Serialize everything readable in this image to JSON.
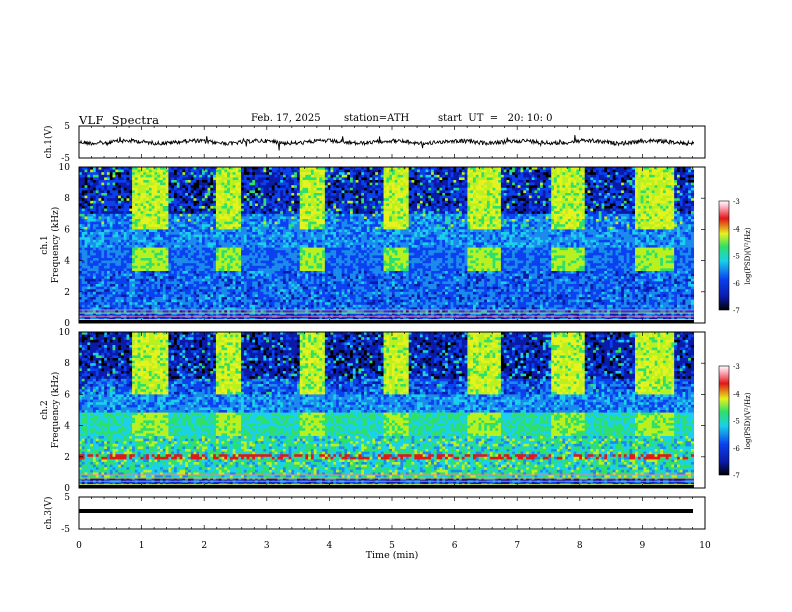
{
  "header": {
    "title": "VLF  Spectra",
    "date": "Feb. 17, 2025",
    "station": "station=ATH",
    "start_ut": "start  UT  =   20: 10: 0"
  },
  "chart_data": [
    {
      "type": "line",
      "panel": "ch1-waveform",
      "ylabel": "ch.1(V)",
      "ylim": [
        -5,
        5
      ],
      "yticks": [
        5,
        -5
      ],
      "x": [
        0,
        9.82
      ],
      "description_values": {
        "baseline_V": 0.2,
        "noise_amp_V": 1.0
      }
    },
    {
      "type": "heatmap",
      "panel": "ch1-spectrogram",
      "ylabel": "ch.1\nFrequency (kHz)",
      "ylim": [
        0,
        10
      ],
      "yticks": [
        "10",
        "8",
        "6",
        "4",
        "2",
        "0"
      ],
      "xlim": [
        0,
        9.82
      ],
      "colorbar": {
        "label": "log(PSD)(V²/Hz)",
        "range": [
          -7,
          -3
        ],
        "ticks": [
          "-3",
          "-4",
          "-5",
          "-6",
          "-7"
        ]
      },
      "bursts_min": [
        [
          0.83,
          1.45
        ],
        [
          2.18,
          2.6
        ],
        [
          3.52,
          3.94
        ],
        [
          4.87,
          5.28
        ],
        [
          6.2,
          6.72
        ],
        [
          7.55,
          8.08
        ],
        [
          8.9,
          9.52
        ]
      ]
    },
    {
      "type": "heatmap",
      "panel": "ch2-spectrogram",
      "ylabel": "ch.2\nFrequency (kHz)",
      "ylim": [
        0,
        10
      ],
      "yticks": [
        "10",
        "8",
        "6",
        "4",
        "2",
        "0"
      ],
      "xlim": [
        0,
        9.82
      ],
      "colorbar": {
        "label": "log(PSD)(V²/Hz)",
        "range": [
          -7,
          -3
        ],
        "ticks": [
          "-3",
          "-4",
          "-5",
          "-6",
          "-7"
        ]
      },
      "bursts_min": [
        [
          0.83,
          1.45
        ],
        [
          2.18,
          2.6
        ],
        [
          3.52,
          3.94
        ],
        [
          4.87,
          5.28
        ],
        [
          6.2,
          6.72
        ],
        [
          7.55,
          8.08
        ],
        [
          8.9,
          9.52
        ]
      ]
    },
    {
      "type": "line",
      "panel": "ch3-waveform",
      "ylabel": "ch.3(V)",
      "ylim": [
        -5,
        5
      ],
      "yticks": [
        "5",
        "-5"
      ],
      "constant_V": -0.5
    }
  ],
  "xaxis": {
    "label": "Time  (min)",
    "range": [
      0,
      10
    ],
    "ticks": [
      "0",
      "1",
      "2",
      "3",
      "4",
      "5",
      "6",
      "7",
      "8",
      "9",
      "10"
    ]
  },
  "colors": {
    "black": "#000000",
    "blue": "#0a2fd6",
    "cyan": "#19c8e6",
    "green": "#2ee06a",
    "yellow": "#e6f21e",
    "red": "#e01818"
  }
}
